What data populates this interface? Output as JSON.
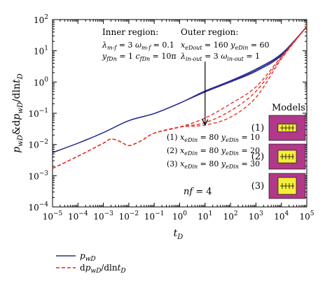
{
  "chart_data": {
    "type": "line",
    "x_scale": "log",
    "y_scale": "log",
    "xlim": [
      1e-05,
      100000.0
    ],
    "ylim": [
      0.0001,
      100.0
    ],
    "xlabel": "t_D",
    "ylabel": "p_wD&dp_wD/dlnt_D",
    "x_ticks": [
      "10^-5",
      "10^-4",
      "10^-3",
      "10^-2",
      "10^-1",
      "10^0",
      "10^1",
      "10^2",
      "10^3",
      "10^4",
      "10^5"
    ],
    "y_ticks": [
      "10^-4",
      "10^-3",
      "10^-2",
      "10^-1",
      "10^0",
      "10^1",
      "10^2"
    ],
    "legend": [
      {
        "label": "p_wD",
        "style": "solid",
        "color": "#2b2d8f"
      },
      {
        "label": "dp_wD/dlnt_D",
        "style": "dashed",
        "color": "#e8241c"
      }
    ],
    "series": [
      {
        "group": "pwd",
        "case": 1,
        "color": "#2b2d8f",
        "points": [
          [
            1e-05,
            0.0055
          ],
          [
            0.0001,
            0.011
          ],
          [
            0.001,
            0.024
          ],
          [
            0.01,
            0.058
          ],
          [
            0.1,
            0.098
          ],
          [
            1.0,
            0.21
          ],
          [
            10.0,
            0.52
          ],
          [
            100.0,
            1.1
          ],
          [
            1000.0,
            2.6
          ],
          [
            10000.0,
            8.0
          ],
          [
            100000.0,
            60
          ]
        ]
      },
      {
        "group": "pwd",
        "case": 2,
        "color": "#2b2d8f",
        "points": [
          [
            1e-05,
            0.0055
          ],
          [
            0.0001,
            0.011
          ],
          [
            0.001,
            0.024
          ],
          [
            0.01,
            0.058
          ],
          [
            0.1,
            0.098
          ],
          [
            1.0,
            0.21
          ],
          [
            10.0,
            0.5
          ],
          [
            100.0,
            1.05
          ],
          [
            1000.0,
            2.4
          ],
          [
            10000.0,
            7.5
          ],
          [
            100000.0,
            60
          ]
        ]
      },
      {
        "group": "pwd",
        "case": 3,
        "color": "#2b2d8f",
        "points": [
          [
            1e-05,
            0.0055
          ],
          [
            0.0001,
            0.011
          ],
          [
            0.001,
            0.024
          ],
          [
            0.01,
            0.058
          ],
          [
            0.1,
            0.098
          ],
          [
            1.0,
            0.21
          ],
          [
            10.0,
            0.48
          ],
          [
            100.0,
            1.0
          ],
          [
            1000.0,
            2.2
          ],
          [
            10000.0,
            7.0
          ],
          [
            100000.0,
            60
          ]
        ]
      },
      {
        "group": "deriv",
        "case": 1,
        "color": "#e8241c",
        "points": [
          [
            1e-05,
            0.0017
          ],
          [
            0.0001,
            0.0042
          ],
          [
            0.001,
            0.011
          ],
          [
            0.002,
            0.015
          ],
          [
            0.005,
            0.012
          ],
          [
            0.01,
            0.0092
          ],
          [
            0.03,
            0.013
          ],
          [
            0.1,
            0.023
          ],
          [
            1.0,
            0.036
          ],
          [
            10.0,
            0.07
          ],
          [
            100.0,
            0.2
          ],
          [
            1000.0,
            0.7
          ],
          [
            10000.0,
            6.5
          ],
          [
            100000.0,
            60
          ]
        ]
      },
      {
        "group": "deriv",
        "case": 2,
        "color": "#e8241c",
        "points": [
          [
            1e-05,
            0.0017
          ],
          [
            0.0001,
            0.0042
          ],
          [
            0.001,
            0.011
          ],
          [
            0.002,
            0.015
          ],
          [
            0.005,
            0.012
          ],
          [
            0.01,
            0.0092
          ],
          [
            0.03,
            0.013
          ],
          [
            0.1,
            0.023
          ],
          [
            1.0,
            0.036
          ],
          [
            10.0,
            0.05
          ],
          [
            100.0,
            0.12
          ],
          [
            1000.0,
            0.5
          ],
          [
            10000.0,
            6.0
          ],
          [
            100000.0,
            60
          ]
        ]
      },
      {
        "group": "deriv",
        "case": 3,
        "color": "#e8241c",
        "points": [
          [
            1e-05,
            0.0017
          ],
          [
            0.0001,
            0.0042
          ],
          [
            0.001,
            0.011
          ],
          [
            0.002,
            0.015
          ],
          [
            0.005,
            0.012
          ],
          [
            0.01,
            0.0092
          ],
          [
            0.03,
            0.013
          ],
          [
            0.1,
            0.023
          ],
          [
            1.0,
            0.036
          ],
          [
            10.0,
            0.042
          ],
          [
            100.0,
            0.075
          ],
          [
            1000.0,
            0.32
          ],
          [
            10000.0,
            5.5
          ],
          [
            100000.0,
            60
          ]
        ]
      }
    ],
    "arrow": {
      "from": [
        10,
        4.5
      ],
      "to": [
        10,
        0.042
      ]
    },
    "annotations": {
      "inner": {
        "title": "Inner region:",
        "line1": "λm-f = 3 ωm-f = 0.1",
        "line2": "yfDn = 1 cfDn = 10π"
      },
      "outer": {
        "title": "Outer region:",
        "line1": "xeDout = 160 yeDin = 60",
        "line2": "λin-out = 3 ωin-out = 1"
      },
      "cases": [
        "(1) xeDin = 80 yeDin = 10",
        "(2) xeDin = 80 yeDin = 20",
        "(3) xeDin = 80 yeDin = 30"
      ],
      "nf": "nf = 4"
    },
    "models": {
      "title": "Models:",
      "labels": [
        "(1)",
        "(2)",
        "(3)"
      ]
    },
    "colors": {
      "pwd": "#2b2d8f",
      "deriv": "#e8241c",
      "model_outer": "#b0398a",
      "model_inner": "#f5ee3a"
    }
  }
}
